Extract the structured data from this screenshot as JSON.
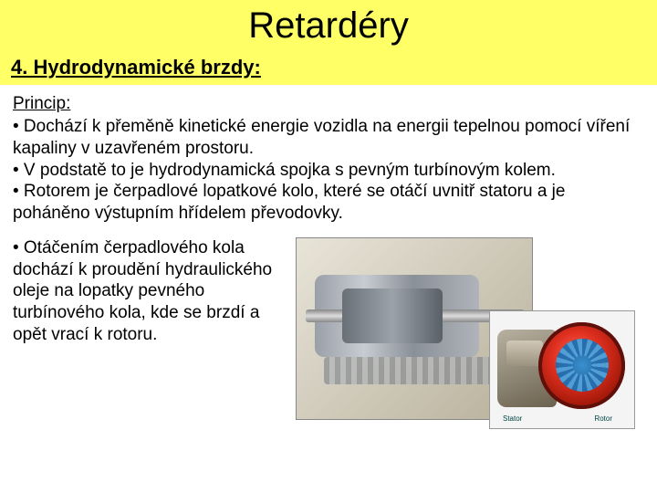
{
  "colors": {
    "title_bg": "#ffff66",
    "subtitle_bg": "#ffff66",
    "page_bg": "#ffffff",
    "text": "#000000"
  },
  "title": "Retardéry",
  "subtitle": "4. Hydrodynamické brzdy:",
  "principle": {
    "label": "Princip:",
    "bullets": [
      "• Dochází k přeměně kinetické energie vozidla na energii tepelnou pomocí víření kapaliny v uzavřeném prostoru.",
      "• V podstatě to je hydrodynamická spojka s pevným turbínovým kolem.",
      "• Rotorem je čerpadlové lopatkové kolo, které se otáčí uvnitř statoru a je poháněno výstupním hřídelem převodovky."
    ]
  },
  "lower_bullet": "• Otáčením čerpadlového kola dochází k proudění hydraulického oleje na lopatky pevného turbínového kola, kde se brzdí a opět vrací k rotoru.",
  "diagram": {
    "cutaway_desc": "gearbox-retarder-cutaway",
    "unit_desc": "retarder-disc-unit",
    "label_left": "Stator",
    "label_right": "Rotor"
  }
}
